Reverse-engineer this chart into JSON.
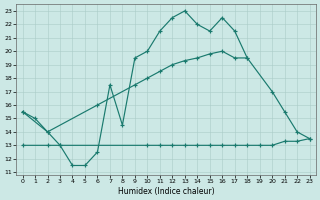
{
  "bg_color": "#cce8e5",
  "line_color": "#1a7a6e",
  "xlabel": "Humidex (Indice chaleur)",
  "xlim": [
    -0.5,
    23.5
  ],
  "ylim": [
    10.8,
    23.5
  ],
  "xticks": [
    0,
    1,
    2,
    3,
    4,
    5,
    6,
    7,
    8,
    9,
    10,
    11,
    12,
    13,
    14,
    15,
    16,
    17,
    18,
    19,
    20,
    21,
    22,
    23
  ],
  "yticks": [
    11,
    12,
    13,
    14,
    15,
    16,
    17,
    18,
    19,
    20,
    21,
    22,
    23
  ],
  "line1_x": [
    0,
    1,
    2,
    3,
    4,
    5,
    6,
    7,
    8,
    9,
    10,
    11,
    12,
    13,
    14,
    15,
    16,
    17,
    18
  ],
  "line1_y": [
    15.5,
    15.0,
    14.0,
    13.0,
    11.5,
    11.5,
    12.5,
    17.5,
    14.5,
    19.5,
    20.0,
    21.5,
    22.5,
    23.0,
    22.0,
    21.5,
    22.5,
    21.5,
    19.5
  ],
  "line2_x": [
    0,
    2,
    6,
    9,
    10,
    11,
    12,
    13,
    14,
    15,
    16,
    17,
    18,
    20,
    21,
    22,
    23
  ],
  "line2_y": [
    15.5,
    14.0,
    16.0,
    17.5,
    18.0,
    18.5,
    19.0,
    19.3,
    19.5,
    19.8,
    20.0,
    19.5,
    19.5,
    17.0,
    15.5,
    14.0,
    13.5
  ],
  "line3_x": [
    0,
    2,
    3,
    10,
    11,
    12,
    13,
    14,
    15,
    16,
    17,
    18,
    19,
    20,
    21,
    22,
    23
  ],
  "line3_y": [
    13.0,
    13.0,
    13.0,
    13.0,
    13.0,
    13.0,
    13.0,
    13.0,
    13.0,
    13.0,
    13.0,
    13.0,
    13.0,
    13.0,
    13.3,
    13.3,
    13.5
  ]
}
